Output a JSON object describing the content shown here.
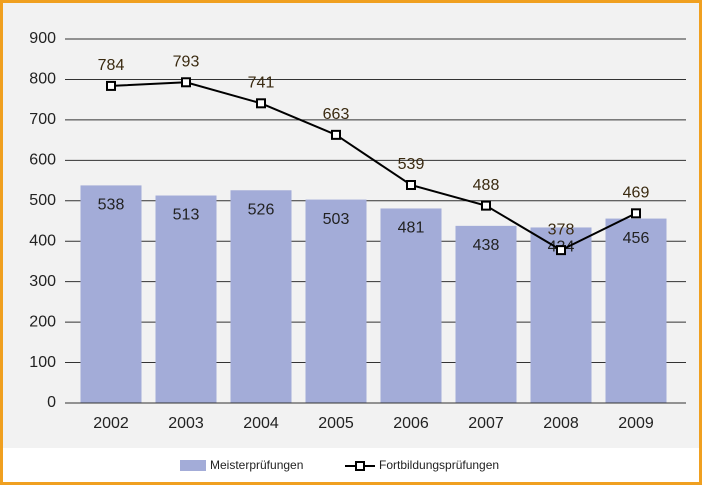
{
  "chart_data": {
    "type": "combo",
    "categories": [
      "2002",
      "2003",
      "2004",
      "2005",
      "2006",
      "2007",
      "2008",
      "2009"
    ],
    "series": [
      {
        "name": "Meisterprüfungen",
        "type": "bar",
        "color": "#a3acd8",
        "values": [
          538,
          513,
          526,
          503,
          481,
          438,
          434,
          456
        ]
      },
      {
        "name": "Fortbildungsprüfungen",
        "type": "line",
        "color": "#000000",
        "values": [
          784,
          793,
          741,
          663,
          539,
          488,
          378,
          469
        ]
      }
    ],
    "ylim": [
      0,
      900
    ],
    "yticks": [
      0,
      100,
      200,
      300,
      400,
      500,
      600,
      700,
      800,
      900
    ],
    "grid": true,
    "legend": "bottom"
  }
}
